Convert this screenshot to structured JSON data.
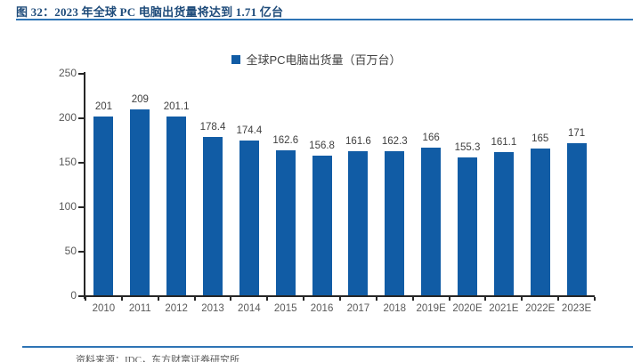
{
  "header": {
    "title": "图 32：2023 年全球 PC 电脑出货量将达到 1.71 亿台"
  },
  "footer": {
    "source": "资料来源：IDC，东方财富证券研究所"
  },
  "style": {
    "title_color": "#1E4B7A",
    "accent_line_color": "#2E74B5"
  },
  "chart_data": {
    "type": "bar",
    "title": "图 32：2023 年全球 PC 电脑出货量将达到 1.71 亿台",
    "legend": "全球PC电脑出货量（百万台）",
    "legend_position": "top-center",
    "categories": [
      "2010",
      "2011",
      "2012",
      "2013",
      "2014",
      "2015",
      "2016",
      "2017",
      "2018",
      "2019E",
      "2020E",
      "2021E",
      "2022E",
      "2023E"
    ],
    "values": [
      201,
      209,
      201.1,
      178.4,
      174.4,
      162.6,
      156.8,
      161.6,
      162.3,
      166,
      155.3,
      161.1,
      165,
      171
    ],
    "value_labels": [
      "201",
      "209",
      "201.1",
      "178.4",
      "174.4",
      "162.6",
      "156.8",
      "161.6",
      "162.3",
      "166",
      "155.3",
      "161.1",
      "165",
      "171"
    ],
    "xlabel": "",
    "ylabel": "",
    "ylim": [
      0,
      250
    ],
    "yticks": [
      0,
      50,
      100,
      150,
      200,
      250
    ],
    "grid": false,
    "bar_color": "#115CA5",
    "label_color": "#404040",
    "tick_label_color": "#595959",
    "axis_color": "#262626"
  }
}
